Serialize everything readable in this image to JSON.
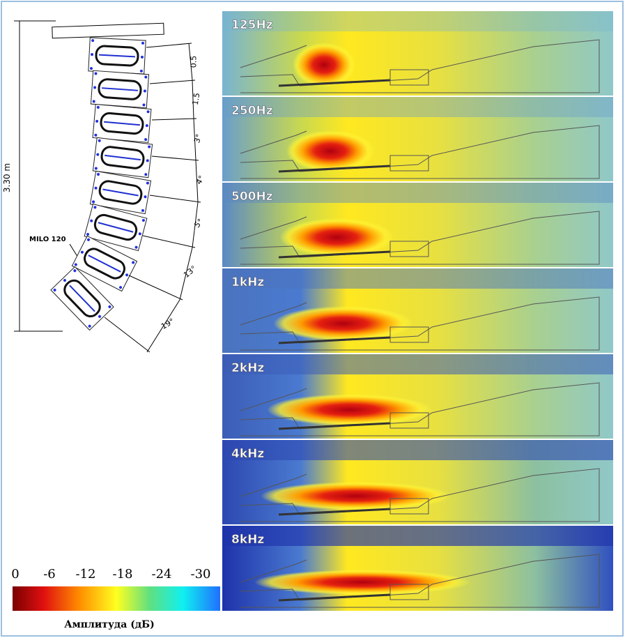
{
  "array": {
    "height_label": "3.30 m",
    "model_label": "MILO 120",
    "angles": [
      "0.5",
      "1.5",
      "3°",
      "4°",
      "5°",
      "13°",
      "19°"
    ]
  },
  "panels": [
    {
      "label": "125Hz"
    },
    {
      "label": "250Hz"
    },
    {
      "label": "500Hz"
    },
    {
      "label": "1kHz"
    },
    {
      "label": "2kHz"
    },
    {
      "label": "4kHz"
    },
    {
      "label": "8kHz"
    }
  ],
  "legend": {
    "ticks": [
      "0",
      "-6",
      "-12",
      "-18",
      "-24",
      "-30"
    ],
    "caption": "Амплитуда (дБ)"
  }
}
